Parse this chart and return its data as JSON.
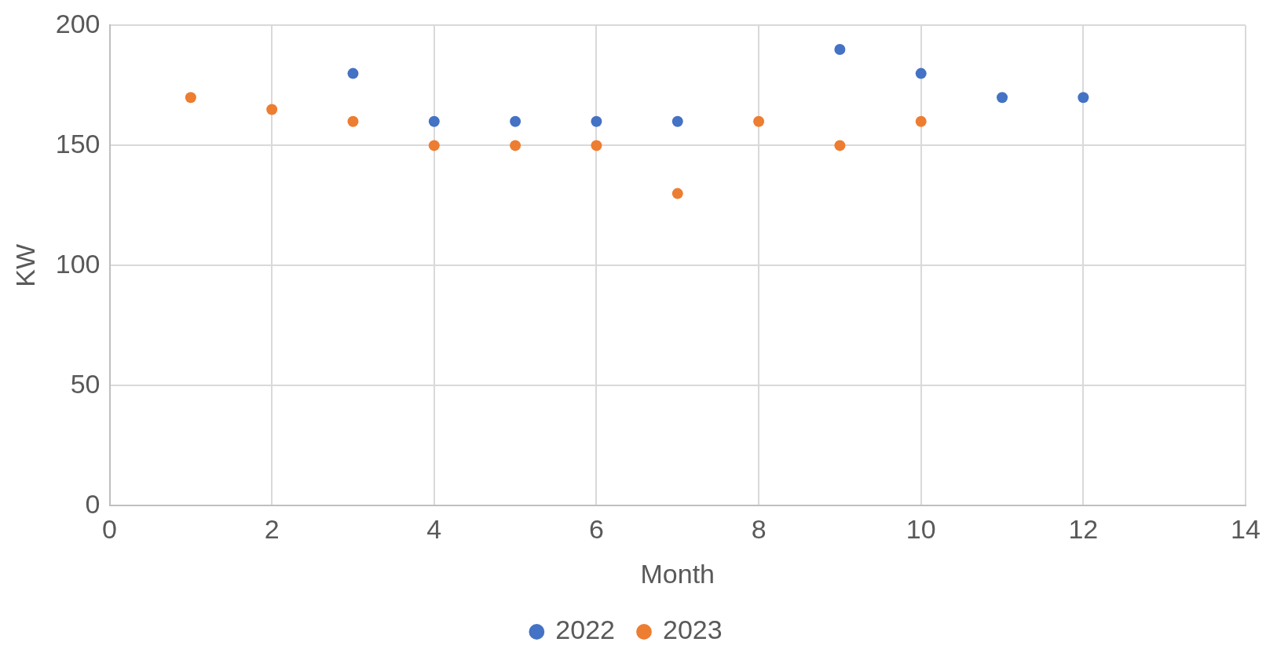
{
  "chart_data": {
    "type": "scatter",
    "xlabel": "Month",
    "ylabel": "KW",
    "series": [
      {
        "name": "2022",
        "color": "#4472c4",
        "x": [
          3,
          4,
          5,
          6,
          7,
          9,
          10,
          11,
          12
        ],
        "values": [
          180,
          160,
          160,
          160,
          160,
          190,
          180,
          170,
          170
        ]
      },
      {
        "name": "2023",
        "color": "#ed7d31",
        "x": [
          1,
          2,
          3,
          4,
          5,
          6,
          7,
          8,
          9,
          10
        ],
        "values": [
          170,
          165,
          160,
          150,
          150,
          150,
          130,
          160,
          150,
          160
        ]
      }
    ],
    "xlim": [
      0,
      14
    ],
    "xticks": [
      0,
      2,
      4,
      6,
      8,
      10,
      12,
      14
    ],
    "ylim": [
      0,
      200
    ],
    "yticks": [
      0,
      50,
      100,
      150,
      200
    ],
    "grid": true,
    "legend": "bottom",
    "marker": "circle"
  }
}
